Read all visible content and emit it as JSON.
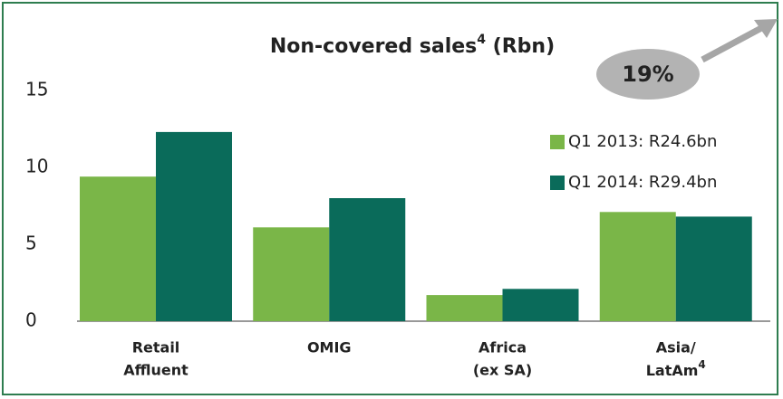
{
  "chart_data": {
    "type": "bar",
    "title": {
      "text": "Non-covered sales",
      "sup": "4",
      "after": " (Rbn)"
    },
    "categories": [
      [
        "Retail",
        "Affluent"
      ],
      [
        "OMIG"
      ],
      [
        "Africa",
        "(ex SA)"
      ],
      [
        "Asia/",
        {
          "text": "LatAm",
          "sup": "4"
        }
      ]
    ],
    "series": [
      {
        "name": "Q1 2013: R24.6bn",
        "color": "#7ab648",
        "values": [
          9.4,
          6.1,
          1.7,
          7.1
        ]
      },
      {
        "name": "Q1 2014: R29.4bn",
        "color": "#0a6b5a",
        "values": [
          12.3,
          8.0,
          2.1,
          6.8
        ]
      }
    ],
    "annotation": "19%",
    "ylim": [
      0,
      15
    ],
    "yticks": [
      0,
      5,
      10,
      15
    ],
    "grid": false,
    "legend": "right"
  }
}
